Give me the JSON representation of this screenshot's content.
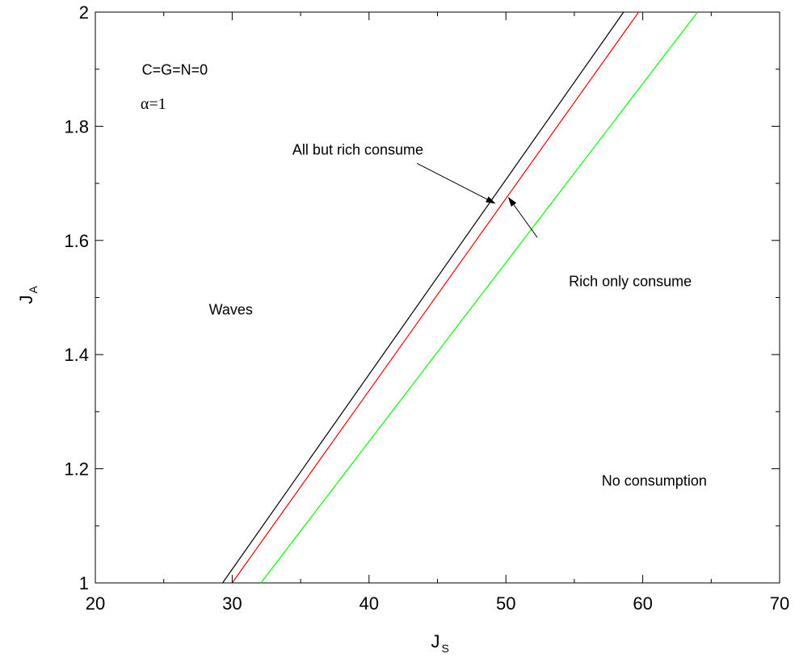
{
  "chart_data": {
    "type": "line",
    "xlabel": "J",
    "xlabel_sub": "S",
    "ylabel": "J",
    "ylabel_sub": "A",
    "xlim": [
      20,
      70
    ],
    "ylim": [
      1,
      2
    ],
    "xticks": [
      20,
      30,
      40,
      50,
      60,
      70
    ],
    "xtick_labels": [
      "20",
      "30",
      "40",
      "50",
      "60",
      "70"
    ],
    "yticks": [
      1,
      1.2,
      1.4,
      1.6,
      1.8,
      2
    ],
    "ytick_labels": [
      "1",
      "1.2",
      "1.4",
      "1.6",
      "1.8",
      "2"
    ],
    "grid": false,
    "series": [
      {
        "color": "#000000",
        "x": [
          29.3,
          58.6
        ],
        "y": [
          1,
          2
        ]
      },
      {
        "color": "#ff0000",
        "x": [
          30.0,
          59.7
        ],
        "y": [
          1,
          2
        ]
      },
      {
        "color": "#00ff00",
        "x": [
          32.1,
          64.0
        ],
        "y": [
          1,
          2
        ]
      }
    ],
    "annotations": [
      {
        "text": "C=G=N=0",
        "x": 23.4,
        "y": 1.9,
        "style": "sans"
      },
      {
        "text": "α=1",
        "x": 23.3,
        "y": 1.84,
        "style": "serif"
      },
      {
        "text": "All but rich consume",
        "x": 34.4,
        "y": 1.76,
        "style": "sans"
      },
      {
        "text": "Rich only consume",
        "x": 54.6,
        "y": 1.53,
        "style": "sans"
      },
      {
        "text": "Waves",
        "x": 28.3,
        "y": 1.48,
        "style": "sans"
      },
      {
        "text": "No consumption",
        "x": 57.0,
        "y": 1.18,
        "style": "sans"
      }
    ],
    "arrows": [
      {
        "from": [
          43.5,
          1.735
        ],
        "to": [
          49.2,
          1.665
        ]
      },
      {
        "from": [
          52.3,
          1.605
        ],
        "to": [
          50.2,
          1.675
        ]
      }
    ]
  }
}
